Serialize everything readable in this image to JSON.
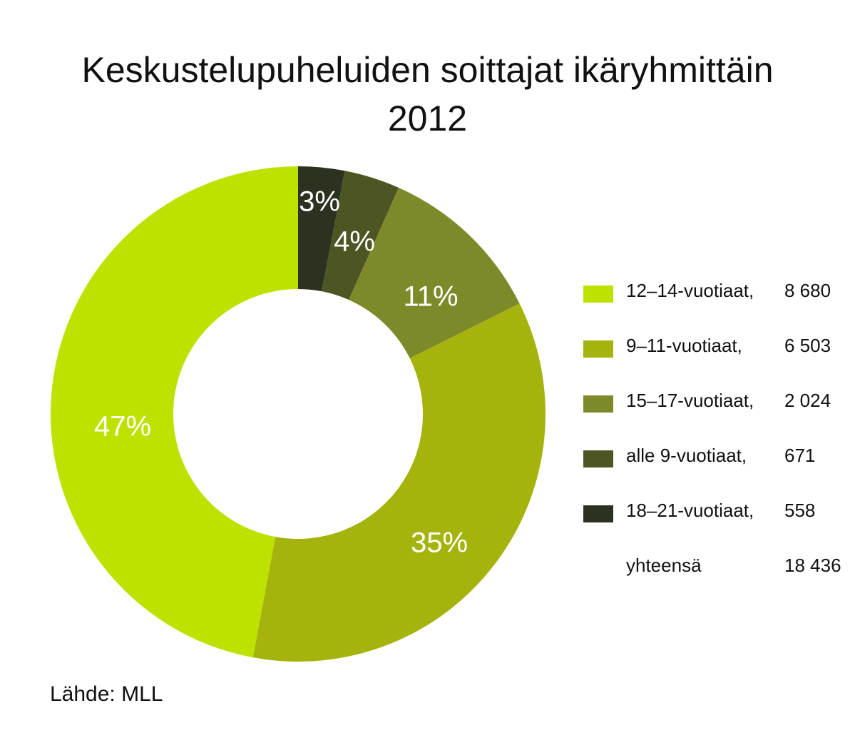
{
  "chart_data": {
    "type": "pie",
    "title": "Keskustelupuheluiden soittajat ikäryhmittäin",
    "subtitle": "2012",
    "slices": [
      {
        "label": "18–21-vuotiaat,",
        "value": 558,
        "percent_label": "3%",
        "color": "#2b3220"
      },
      {
        "label": "alle 9-vuotiaat,",
        "value": 671,
        "percent_label": "4%",
        "color": "#4d5623"
      },
      {
        "label": "15–17-vuotiaat,",
        "value": 2024,
        "percent_label": "11%",
        "color": "#7e8a2a"
      },
      {
        "label": "9–11-vuotiaat,",
        "value": 6503,
        "percent_label": "35%",
        "color": "#a4b40c"
      },
      {
        "label": "12–14-vuotiaat,",
        "value": 8680,
        "percent_label": "47%",
        "color": "#bee200"
      }
    ],
    "legend_order": [
      {
        "label": "12–14-vuotiaat,",
        "value": "8 680",
        "color": "#bee200"
      },
      {
        "label": "9–11-vuotiaat,",
        "value": "6 503",
        "color": "#a4b40c"
      },
      {
        "label": "15–17-vuotiaat,",
        "value": "2 024",
        "color": "#7e8a2a"
      },
      {
        "label": "alle 9-vuotiaat,",
        "value": "671",
        "color": "#4d5623"
      },
      {
        "label": "18–21-vuotiaat,",
        "value": "558",
        "color": "#2b3220"
      }
    ],
    "total": {
      "label": "yhteensä",
      "value": "18 436"
    },
    "legend_position": "right"
  },
  "source": "Lähde: MLL"
}
